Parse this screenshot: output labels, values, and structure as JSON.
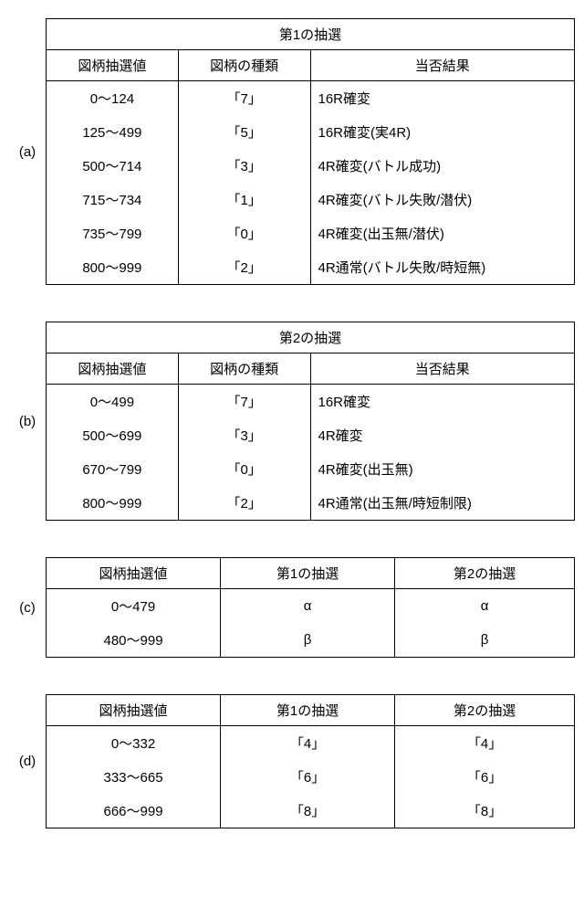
{
  "tables": {
    "a": {
      "label": "(a)",
      "title": "第1の抽選",
      "headers": [
        "図柄抽選値",
        "図柄の種類",
        "当否結果"
      ],
      "col3_align": "left",
      "rows": [
        [
          "0～124",
          "「7」",
          "16R確変"
        ],
        [
          "125～499",
          "「5」",
          "16R確変(実4R)"
        ],
        [
          "500～714",
          "「3」",
          "4R確変(バトル成功)"
        ],
        [
          "715～734",
          "「1」",
          "4R確変(バトル失敗/潜伏)"
        ],
        [
          "735～799",
          "「0」",
          "4R確変(出玉無/潜伏)"
        ],
        [
          "800～999",
          "「2」",
          "4R通常(バトル失敗/時短無)"
        ]
      ]
    },
    "b": {
      "label": "(b)",
      "title": "第2の抽選",
      "headers": [
        "図柄抽選値",
        "図柄の種類",
        "当否結果"
      ],
      "col3_align": "left",
      "rows": [
        [
          "0～499",
          "「7」",
          "16R確変"
        ],
        [
          "500～699",
          "「3」",
          "4R確変"
        ],
        [
          "670～799",
          "「0」",
          "4R確変(出玉無)"
        ],
        [
          "800～999",
          "「2」",
          "4R通常(出玉無/時短制限)"
        ]
      ]
    },
    "c": {
      "label": "(c)",
      "title": null,
      "headers": [
        "図柄抽選値",
        "第1の抽選",
        "第2の抽選"
      ],
      "col3_align": "center",
      "rows": [
        [
          "0～479",
          "α",
          "α"
        ],
        [
          "480～999",
          "β",
          "β"
        ]
      ]
    },
    "d": {
      "label": "(d)",
      "title": null,
      "headers": [
        "図柄抽選値",
        "第1の抽選",
        "第2の抽選"
      ],
      "col3_align": "center",
      "rows": [
        [
          "0～332",
          "「4」",
          "「4」"
        ],
        [
          "333～665",
          "「6」",
          "「6」"
        ],
        [
          "666～999",
          "「8」",
          "「8」"
        ]
      ]
    }
  }
}
